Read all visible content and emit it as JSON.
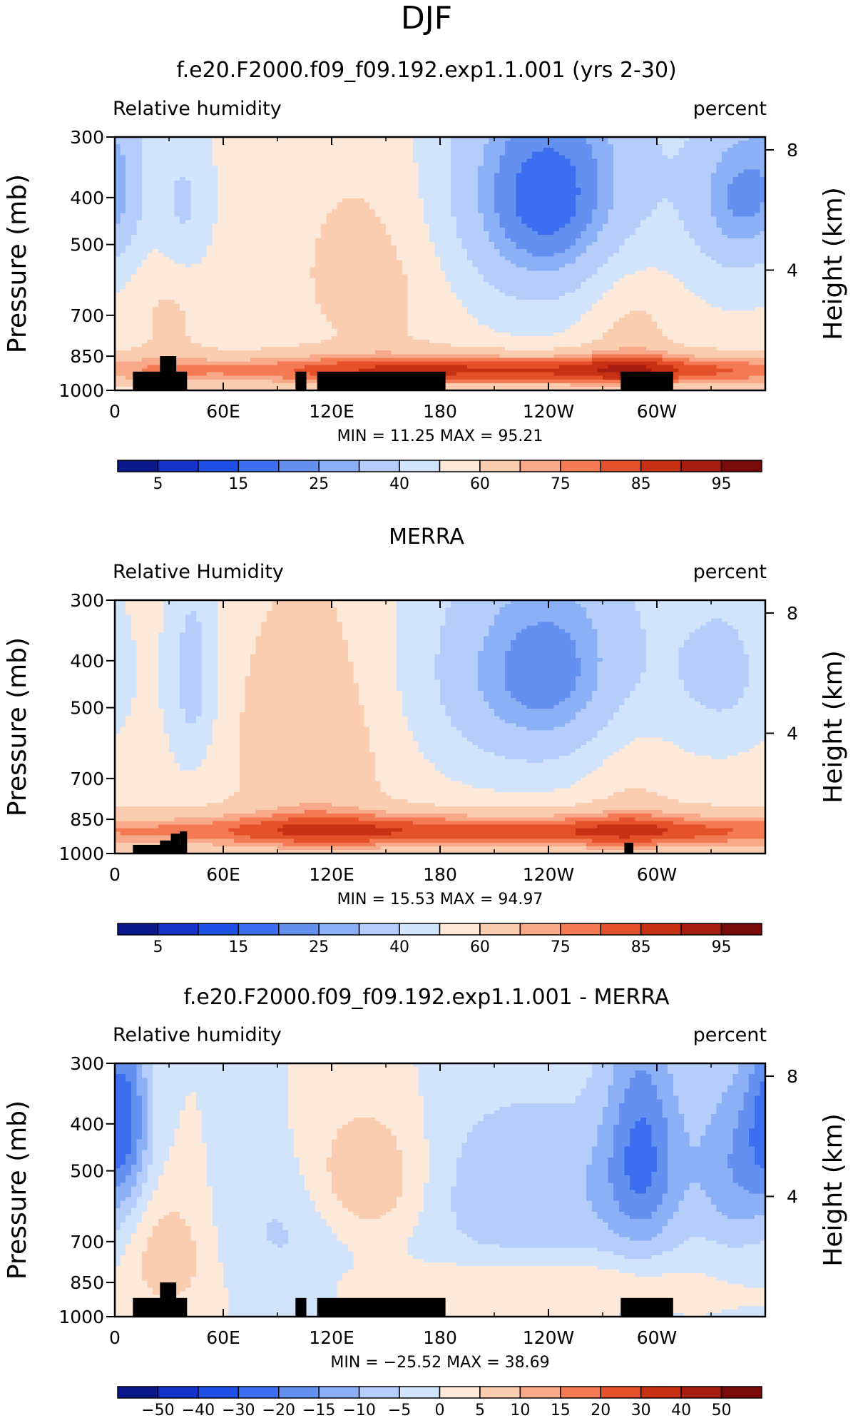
{
  "figure": {
    "suptitle": "DJF"
  },
  "chart_data": [
    {
      "type": "heatmap",
      "title": "f.e20.F2000.f09_f09.192.exp1.1.001 (yrs 2-30)",
      "left_string": "Relative humidity",
      "right_string": "percent",
      "ylabel": "Pressure (mb)",
      "y2label": "Height (km)",
      "x_ticks": [
        "0",
        "60E",
        "120E",
        "180",
        "120W",
        "60W"
      ],
      "y_ticks": [
        "300",
        "400",
        "500",
        "700",
        "850",
        "1000"
      ],
      "y2_ticks": [
        "8",
        "4"
      ],
      "xlim": [
        0,
        360
      ],
      "ylim": [
        1000,
        300
      ],
      "y_scale": "log",
      "min_max_text": "MIN =   11.25   MAX =   95.21",
      "min": 11.25,
      "max": 95.21,
      "colorbar_labels": [
        "5",
        "15",
        "25",
        "40",
        "60",
        "75",
        "85",
        "95"
      ],
      "colorbar_colors": [
        "#0a1a8c",
        "#1432c8",
        "#1e50e6",
        "#3c6ef0",
        "#6490f0",
        "#8cb0f5",
        "#b4cdfa",
        "#d2e3fc",
        "#fde9d9",
        "#fbcdb0",
        "#f8a989",
        "#f47a54",
        "#e4502a",
        "#c83014",
        "#a61c10",
        "#7a0a0a"
      ],
      "field": "rh_model",
      "land": [
        [
          10,
          40,
          915
        ],
        [
          25,
          34,
          850
        ],
        [
          100,
          106,
          915
        ],
        [
          112,
          183,
          915
        ],
        [
          280,
          309,
          915
        ]
      ]
    },
    {
      "type": "heatmap",
      "title": "MERRA",
      "left_string": "Relative Humidity",
      "right_string": "percent",
      "ylabel": "Pressure (mb)",
      "y2label": "Height (km)",
      "x_ticks": [
        "0",
        "60E",
        "120E",
        "180",
        "120W",
        "60W"
      ],
      "y_ticks": [
        "300",
        "400",
        "500",
        "700",
        "850",
        "1000"
      ],
      "y2_ticks": [
        "8",
        "4"
      ],
      "xlim": [
        0,
        360
      ],
      "ylim": [
        1000,
        300
      ],
      "y_scale": "log",
      "min_max_text": "MIN =   15.53   MAX =   94.97",
      "min": 15.53,
      "max": 94.97,
      "colorbar_labels": [
        "5",
        "15",
        "25",
        "40",
        "60",
        "75",
        "85",
        "95"
      ],
      "colorbar_colors": [
        "#0a1a8c",
        "#1432c8",
        "#1e50e6",
        "#3c6ef0",
        "#6490f0",
        "#8cb0f5",
        "#b4cdfa",
        "#d2e3fc",
        "#fde9d9",
        "#fbcdb0",
        "#f8a989",
        "#f47a54",
        "#e4502a",
        "#c83014",
        "#a61c10",
        "#7a0a0a"
      ],
      "field": "rh_merra",
      "land": [
        [
          10,
          39,
          960
        ],
        [
          25,
          31,
          940
        ],
        [
          31,
          36,
          910
        ],
        [
          36,
          40,
          900
        ],
        [
          282,
          287,
          950
        ]
      ]
    },
    {
      "type": "heatmap",
      "title": "f.e20.F2000.f09_f09.192.exp1.1.001 - MERRA",
      "left_string": "Relative humidity",
      "right_string": "percent",
      "ylabel": "Pressure (mb)",
      "y2label": "Height (km)",
      "x_ticks": [
        "0",
        "60E",
        "120E",
        "180",
        "120W",
        "60W"
      ],
      "y_ticks": [
        "300",
        "400",
        "500",
        "700",
        "850",
        "1000"
      ],
      "y2_ticks": [
        "8",
        "4"
      ],
      "xlim": [
        0,
        360
      ],
      "ylim": [
        1000,
        300
      ],
      "y_scale": "log",
      "min_max_text": "MIN = −25.52   MAX =   38.69",
      "min": -25.52,
      "max": 38.69,
      "colorbar_labels": [
        "−50",
        "−40",
        "−30",
        "−20",
        "−15",
        "−10",
        "−5",
        "0",
        "5",
        "10",
        "15",
        "20",
        "30",
        "40",
        "50"
      ],
      "colorbar_colors": [
        "#0a1a8c",
        "#1432c8",
        "#1e50e6",
        "#3c6ef0",
        "#6490f0",
        "#8cb0f5",
        "#b4cdfa",
        "#d2e3fc",
        "#fde9d9",
        "#fbcdb0",
        "#f8a989",
        "#f47a54",
        "#e4502a",
        "#c83014",
        "#a61c10",
        "#7a0a0a"
      ],
      "field": "rh_diff",
      "land": [
        [
          10,
          40,
          915
        ],
        [
          25,
          34,
          850
        ],
        [
          100,
          106,
          915
        ],
        [
          112,
          183,
          915
        ],
        [
          280,
          309,
          915
        ]
      ]
    }
  ]
}
